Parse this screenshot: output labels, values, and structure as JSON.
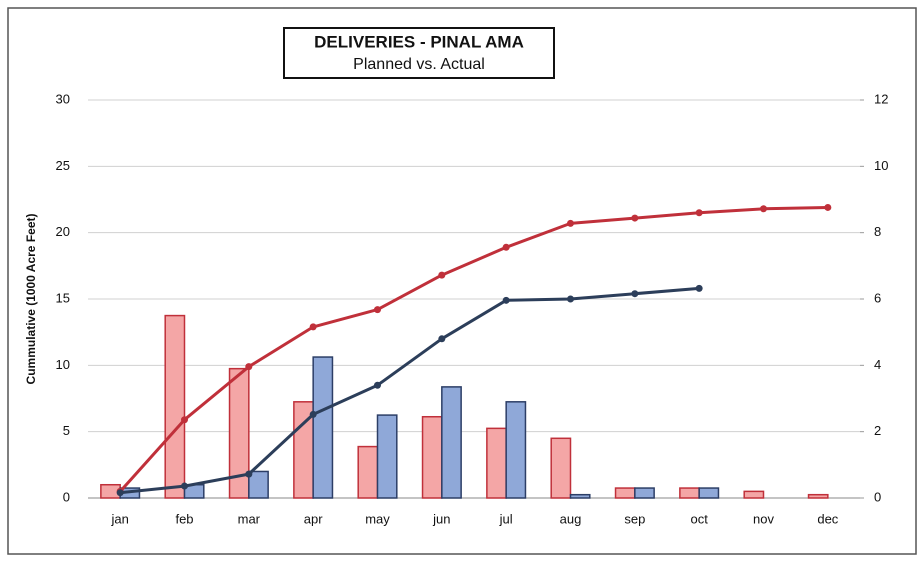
{
  "chart_data": {
    "type": "bar_line",
    "title": "DELIVERIES - PINAL AMA",
    "subtitle": "Planned vs. Actual",
    "y_label": "Cummulative (1000 Acre Feet)",
    "categories": [
      "jan",
      "feb",
      "mar",
      "apr",
      "may",
      "jun",
      "jul",
      "aug",
      "sep",
      "oct",
      "nov",
      "dec"
    ],
    "ylim": [
      0,
      30
    ],
    "yticks": [
      0,
      5,
      10,
      15,
      20,
      25,
      30
    ],
    "y2lim": [
      0,
      12
    ],
    "y2ticks": [
      0,
      2,
      4,
      6,
      8,
      10,
      12
    ],
    "grid": true,
    "bars": [
      {
        "color": "#f4a6a6",
        "edge": "#c0303a",
        "axis": "y2",
        "values": [
          0.4,
          5.5,
          3.9,
          2.9,
          1.55,
          2.45,
          2.1,
          1.8,
          0.3,
          0.3,
          0.2,
          0.1
        ]
      },
      {
        "color": "#8fa8d8",
        "edge": "#2c3e66",
        "axis": "y2",
        "values": [
          0.3,
          0.4,
          0.8,
          4.25,
          2.5,
          3.35,
          2.9,
          0.1,
          0.3,
          0.3,
          null,
          null
        ]
      }
    ],
    "lines": [
      {
        "color": "#c0303a",
        "axis": "y",
        "values": [
          0.5,
          5.9,
          9.9,
          12.9,
          14.2,
          16.8,
          18.9,
          20.7,
          21.1,
          21.5,
          21.8,
          21.9
        ]
      },
      {
        "color": "#2c3e5a",
        "axis": "y",
        "values": [
          0.4,
          0.9,
          1.8,
          6.3,
          8.5,
          12.0,
          14.9,
          15.0,
          15.4,
          15.8,
          null,
          null
        ]
      }
    ]
  }
}
